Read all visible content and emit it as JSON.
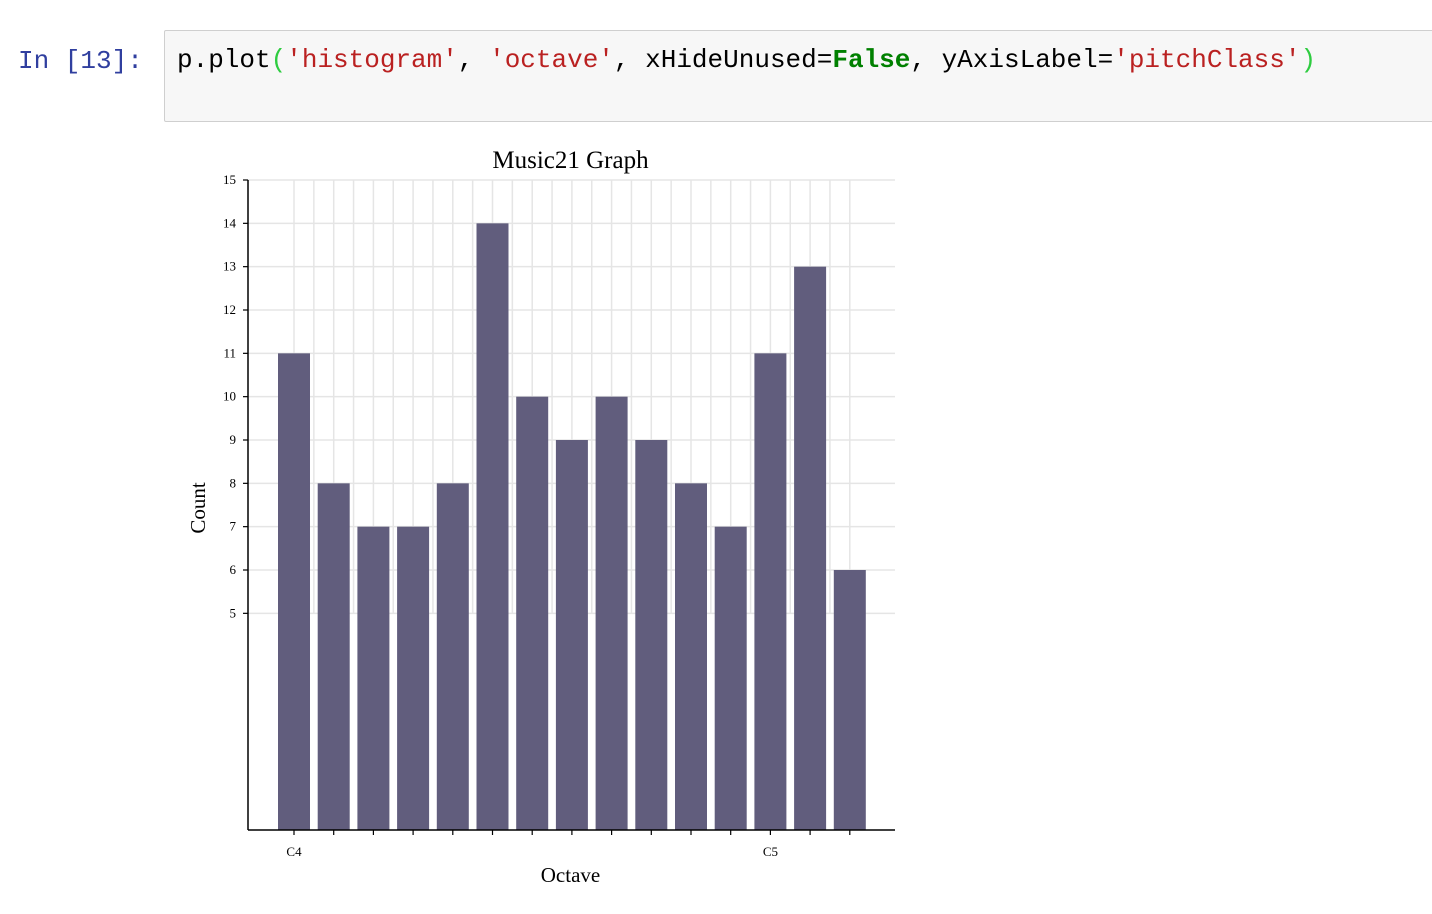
{
  "cell": {
    "prompt": "In [13]:",
    "code_tokens": [
      {
        "t": "p.plot",
        "k": "plain"
      },
      {
        "t": "(",
        "k": "par"
      },
      {
        "t": "'histogram'",
        "k": "str"
      },
      {
        "t": ", ",
        "k": "plain"
      },
      {
        "t": "'octave'",
        "k": "str"
      },
      {
        "t": ", xHideUnused=",
        "k": "plain"
      },
      {
        "t": "False",
        "k": "kw"
      },
      {
        "t": ", yAxisLabel=",
        "k": "plain"
      },
      {
        "t": "'pitchClass'",
        "k": "str"
      },
      {
        "t": ")",
        "k": "par"
      }
    ]
  },
  "chart_data": {
    "type": "bar",
    "title": "Music21 Graph",
    "xlabel": "Octave",
    "ylabel": "Count",
    "values": [
      11,
      8,
      7,
      7,
      8,
      14,
      10,
      9,
      10,
      9,
      8,
      7,
      11,
      13,
      6
    ],
    "x_tick_labels": [
      {
        "index": 0,
        "label": "C4"
      },
      {
        "index": 12,
        "label": "C5"
      }
    ],
    "y_ticks": [
      5,
      6,
      7,
      8,
      9,
      10,
      11,
      12,
      13,
      14,
      15
    ],
    "ylim": [
      0,
      15
    ],
    "grid": true,
    "colors": {
      "bar": "#615d7d",
      "grid": "#e5e5e5",
      "axis": "#000000"
    }
  }
}
